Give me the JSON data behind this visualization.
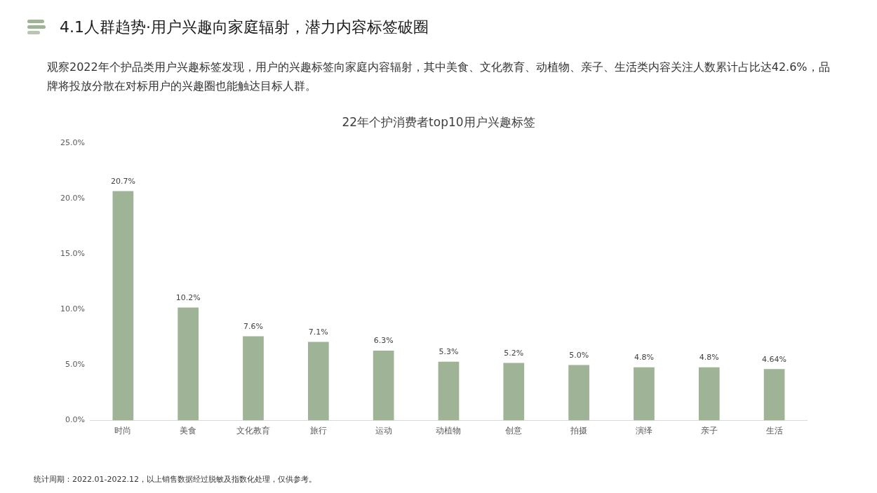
{
  "chart_data": {
    "type": "bar",
    "title": "4.1人群趋势·用户兴趣向家庭辐射，潜力内容标签破圈",
    "subtitle": "观察2022年个护品类用户兴趣标签发现，用户的兴趣标签向家庭内容辐射，其中美食、文化教育、动植物、亲子、生活类内容关注人数累计占比达42.6%，品牌将投放分散在对标用户的兴趣圈也能触达目标人群。",
    "annotations": [
      "22年个护消费者top10用户兴趣标签",
      "统计周期：2022.01-2022.12，以上销售数据经过脱敏及指数化处理，仅供参考。"
    ],
    "categories": [
      "时尚",
      "美食",
      "文化教育",
      "旅行",
      "运动",
      "动植物",
      "创意",
      "拍摄",
      "演绎",
      "亲子",
      "生活"
    ],
    "values": [
      20.7,
      10.2,
      7.6,
      7.1,
      6.3,
      5.3,
      5.2,
      5.0,
      4.8,
      4.8,
      4.64
    ],
    "value_labels": [
      "20.7%",
      "10.2%",
      "7.6%",
      "7.1%",
      "6.3%",
      "5.3%",
      "5.2%",
      "5.0%",
      "4.8%",
      "4.8%",
      "4.64%"
    ],
    "color": "#9fb396",
    "ylim": [
      0,
      25
    ],
    "yticks": [
      {
        "value": 0,
        "label": "0.0%"
      },
      {
        "value": 5,
        "label": "5.0%"
      },
      {
        "value": 10,
        "label": "10.0%"
      },
      {
        "value": 15,
        "label": "15.0%"
      },
      {
        "value": 20,
        "label": "20.0%"
      },
      {
        "value": 25,
        "label": "25.0%"
      }
    ],
    "grid": false,
    "legend": false
  }
}
